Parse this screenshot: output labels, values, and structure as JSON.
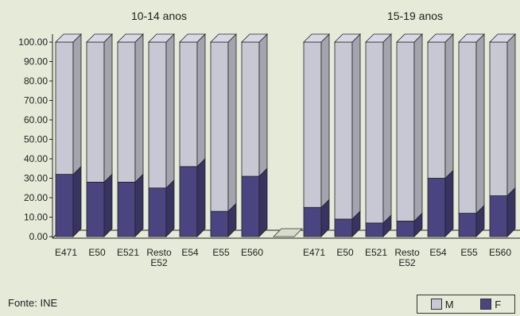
{
  "chart_data": {
    "type": "bar",
    "stacked": true,
    "three_d": true,
    "groups": [
      {
        "title": "10-14 anos",
        "categories": [
          "E471",
          "E50",
          "E521",
          "Resto E52",
          "E54",
          "E55",
          "E560"
        ],
        "series": [
          {
            "name": "F",
            "values": [
              32,
              28,
              28,
              25,
              36,
              13,
              31
            ]
          },
          {
            "name": "M",
            "values": [
              68,
              72,
              72,
              75,
              64,
              87,
              69
            ]
          }
        ]
      },
      {
        "title": "15-19 anos",
        "categories": [
          "E471",
          "E50",
          "E521",
          "Resto E52",
          "E54",
          "E55",
          "E560"
        ],
        "series": [
          {
            "name": "F",
            "values": [
              15,
              9,
              7,
              8,
              30,
              12,
              21
            ]
          },
          {
            "name": "M",
            "values": [
              85,
              91,
              93,
              92,
              70,
              88,
              79
            ]
          }
        ]
      }
    ],
    "yticks": [
      "0.00",
      "10.00",
      "20.00",
      "30.00",
      "40.00",
      "50.00",
      "60.00",
      "70.00",
      "80.00",
      "90.00",
      "100.00"
    ],
    "ylim": [
      0,
      100
    ],
    "legend_position": "bottom-right",
    "colors": {
      "M": "#c8c8d4",
      "F": "#4a4480",
      "background": "#e6ead8"
    }
  },
  "legend": {
    "m_label": "M",
    "f_label": "F"
  },
  "source": "Fonte: INE"
}
